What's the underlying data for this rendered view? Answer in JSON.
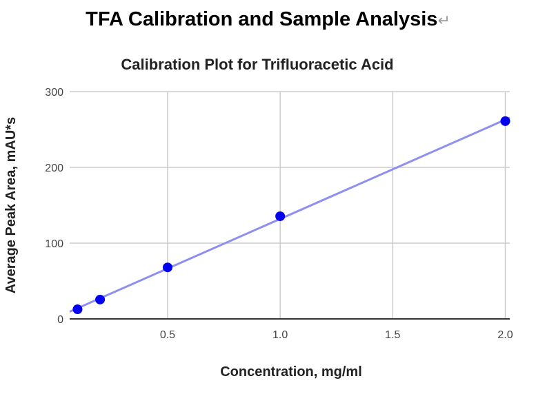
{
  "document": {
    "title": "TFA Calibration and Sample Analysis",
    "return_mark": "↵"
  },
  "chart_data": {
    "type": "scatter",
    "title": "Calibration Plot for Trifluoracetic Acid",
    "xlabel": "Concentration, mg/ml",
    "ylabel": "Average Peak Area, mAU*s",
    "x": [
      0.1,
      0.2,
      0.5,
      1.0,
      2.0
    ],
    "y": [
      12.7,
      25.5,
      68,
      135.5,
      261
    ],
    "xlim": [
      0.065,
      2.02
    ],
    "ylim": [
      0,
      300
    ],
    "xticks": [
      "0.5",
      "1.0",
      "1.5",
      "2.0"
    ],
    "yticks": [
      "0",
      "100",
      "200",
      "300"
    ],
    "trendline": "linear",
    "grid": true,
    "legend": "none",
    "colors": {
      "points": "#0000ee",
      "trendline": "#8f8ff0",
      "grid": "#cccccc",
      "axis": "#333333"
    }
  }
}
